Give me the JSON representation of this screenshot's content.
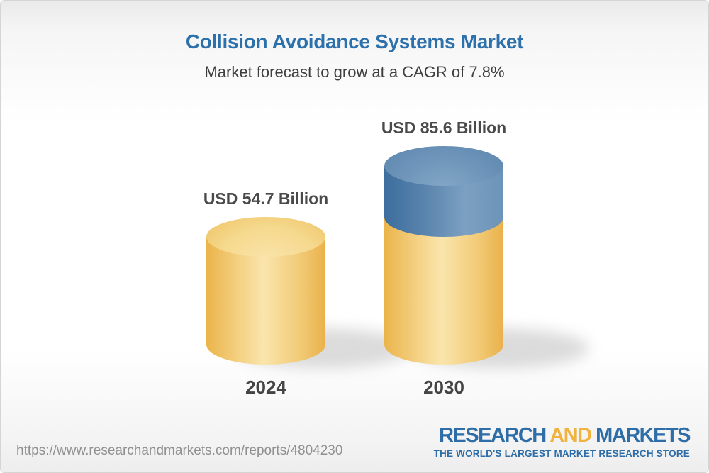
{
  "header": {
    "title": "Collision Avoidance Systems Market",
    "subtitle": "Market forecast to grow at a CAGR of 7.8%"
  },
  "chart_data": {
    "type": "bar",
    "variant": "3d-cylinder-infographic",
    "categories": [
      "2024",
      "2030"
    ],
    "values": [
      54.7,
      85.6
    ],
    "unit": "USD Billion",
    "value_labels": [
      "USD 54.7 Billion",
      "USD 85.6 Billion"
    ],
    "cagr_pct": 7.8,
    "legend": "none",
    "axes": "none",
    "grid": false,
    "colors": {
      "base_segment_gold": "#F2CB78",
      "growth_segment_blue": "#5C87B0",
      "value_label_text": "#4A4A4A",
      "year_label_text": "#444444",
      "title_blue": "#2C70AC"
    },
    "notes": "2030 bar is stacked: gold base equals 2024 value, blue top segment is growth to 85.6"
  },
  "footer": {
    "url": "https://www.researchandmarkets.com/reports/4804230",
    "logo": {
      "word1": "RESEARCH",
      "word2": "AND",
      "word3": "MARKETS",
      "tagline": "THE WORLD'S LARGEST MARKET RESEARCH STORE",
      "blue": "#2D6DA8",
      "gold": "#F1B23E"
    }
  }
}
